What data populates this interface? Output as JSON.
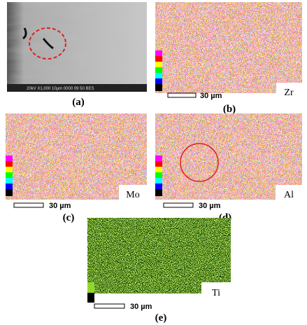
{
  "panels": [
    {
      "label": "(a)",
      "sem_info": "20kV  X1,000  10µm  0000  09 50 BES"
    },
    {
      "label": "(b)",
      "element": "Zr",
      "scale_bar": "30 µm"
    },
    {
      "label": "(c)",
      "element": "Mo",
      "scale_bar": "30 µm"
    },
    {
      "label": "(d)",
      "element": "Al",
      "scale_bar": "30 µm"
    },
    {
      "label": "(e)",
      "element": "Ti",
      "scale_bar": "30 µm"
    }
  ]
}
